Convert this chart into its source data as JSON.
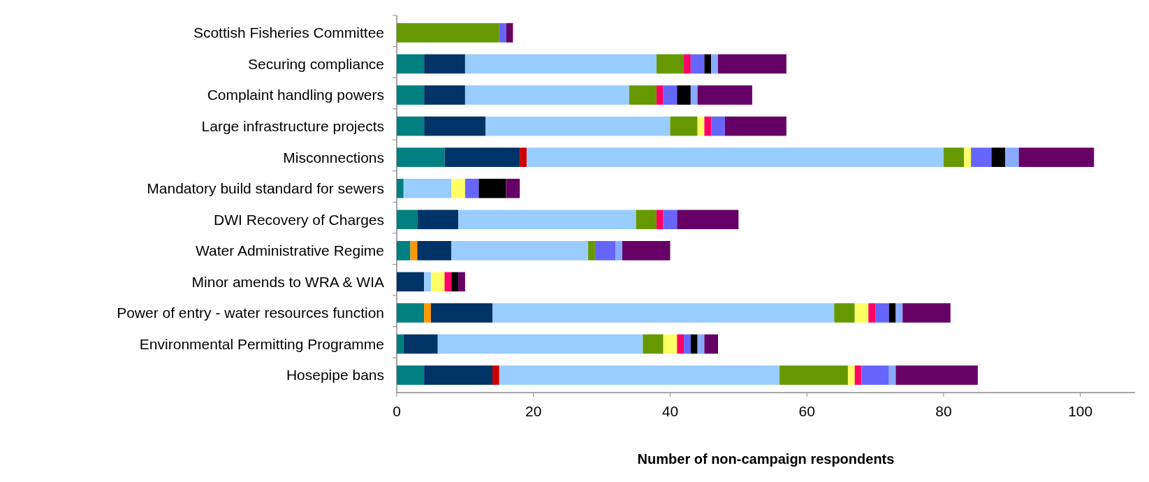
{
  "chart_data": {
    "type": "bar",
    "orientation": "horizontal",
    "stacked": true,
    "xlabel": "Number of non-campaign respondents",
    "categories": [
      "Scottish Fisheries Committee",
      "Securing compliance",
      "Complaint handling powers",
      "Large infrastructure projects",
      "Misconnections",
      "Mandatory build standard for sewers",
      "DWI Recovery of Charges",
      "Water Administrative Regime",
      "Minor amends to WRA & WIA",
      "Power of entry - water resources function",
      "Environmental Permitting Programme",
      "Hosepipe bans"
    ],
    "xlim": [
      0,
      108
    ],
    "xticks": [
      0,
      20,
      40,
      60,
      80,
      100
    ],
    "grid": false,
    "series": [
      {
        "color": "#008080",
        "values": [
          null,
          4,
          4,
          4,
          7,
          1,
          3,
          2,
          null,
          4,
          1,
          4
        ]
      },
      {
        "color": "#ff9900",
        "values": [
          null,
          null,
          null,
          null,
          null,
          null,
          null,
          1,
          null,
          1,
          null,
          null
        ]
      },
      {
        "color": "#003366",
        "values": [
          null,
          6,
          6,
          9,
          11,
          null,
          6,
          5,
          4,
          9,
          5,
          10
        ]
      },
      {
        "color": "#cc0000",
        "values": [
          null,
          null,
          null,
          null,
          1,
          null,
          null,
          null,
          null,
          null,
          null,
          1
        ]
      },
      {
        "color": "#99ccff",
        "values": [
          null,
          28,
          24,
          27,
          61,
          7,
          26,
          20,
          1,
          50,
          30,
          41
        ]
      },
      {
        "color": "#669900",
        "values": [
          15,
          4,
          4,
          4,
          3,
          null,
          3,
          1,
          null,
          3,
          3,
          10
        ]
      },
      {
        "color": "#ffff66",
        "values": [
          null,
          null,
          null,
          1,
          1,
          2,
          null,
          null,
          2,
          2,
          2,
          1
        ]
      },
      {
        "color": "#ff0066",
        "values": [
          null,
          1,
          1,
          1,
          null,
          null,
          1,
          null,
          1,
          1,
          1,
          1
        ]
      },
      {
        "color": "#6666ff",
        "values": [
          1,
          2,
          2,
          2,
          3,
          2,
          2,
          3,
          null,
          2,
          1,
          4
        ]
      },
      {
        "color": "#000000",
        "values": [
          null,
          1,
          2,
          null,
          2,
          4,
          null,
          null,
          1,
          1,
          1,
          null
        ]
      },
      {
        "color": "#88aaff",
        "values": [
          null,
          1,
          1,
          null,
          2,
          null,
          null,
          1,
          null,
          1,
          1,
          1
        ]
      },
      {
        "color": "#660066",
        "values": [
          1,
          10,
          8,
          9,
          11,
          2,
          9,
          7,
          1,
          7,
          2,
          12
        ]
      }
    ]
  }
}
